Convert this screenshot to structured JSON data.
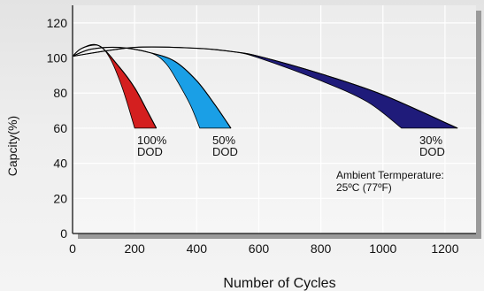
{
  "chart_data": {
    "type": "area",
    "title": "",
    "xlabel": "Number of Cycles",
    "ylabel": "Capcity(%)",
    "xlim": [
      0,
      1300
    ],
    "ylim": [
      0,
      130
    ],
    "x_ticks": [
      {
        "value": 0,
        "label": "0"
      },
      {
        "value": 200,
        "label": "200"
      },
      {
        "value": 400,
        "label": "400"
      },
      {
        "value": 600,
        "label": "600"
      },
      {
        "value": 800,
        "label": "800"
      },
      {
        "value": 1000,
        "label": "1000"
      },
      {
        "value": 1200,
        "label": "1200"
      }
    ],
    "y_ticks": [
      {
        "value": 0,
        "label": "0"
      },
      {
        "value": 20,
        "label": "20"
      },
      {
        "value": 40,
        "label": "40"
      },
      {
        "value": 60,
        "label": "60"
      },
      {
        "value": 80,
        "label": "80"
      },
      {
        "value": 100,
        "label": "100"
      },
      {
        "value": 120,
        "label": "120"
      }
    ],
    "grid": true,
    "series": [
      {
        "name_lines": [
          "100%",
          "DOD"
        ],
        "color": "#d41f1f",
        "left_edge": [
          [
            0,
            101
          ],
          [
            30,
            105.5
          ],
          [
            85,
            107
          ],
          [
            120,
            100
          ],
          [
            150,
            88
          ],
          [
            175,
            75
          ],
          [
            200,
            60
          ]
        ],
        "right_edge": [
          [
            0,
            101
          ],
          [
            30,
            105.5
          ],
          [
            85,
            107
          ],
          [
            150,
            95
          ],
          [
            200,
            83
          ],
          [
            240,
            70
          ],
          [
            270,
            60
          ]
        ]
      },
      {
        "name_lines": [
          "50%",
          "DOD"
        ],
        "color": "#1a9fe6",
        "left_edge": [
          [
            0,
            101
          ],
          [
            60,
            105
          ],
          [
            150,
            106
          ],
          [
            250,
            103
          ],
          [
            300,
            97
          ],
          [
            340,
            86
          ],
          [
            380,
            73
          ],
          [
            410,
            60
          ]
        ],
        "right_edge": [
          [
            0,
            101
          ],
          [
            60,
            105
          ],
          [
            150,
            106
          ],
          [
            250,
            103
          ],
          [
            330,
            98
          ],
          [
            400,
            87
          ],
          [
            460,
            73
          ],
          [
            510,
            60
          ]
        ]
      },
      {
        "name_lines": [
          "30%",
          "DOD"
        ],
        "color": "#1f1b7a",
        "left_edge": [
          [
            0,
            101
          ],
          [
            200,
            106
          ],
          [
            400,
            105.5
          ],
          [
            520,
            103.5
          ],
          [
            600,
            100
          ],
          [
            800,
            87
          ],
          [
            950,
            75
          ],
          [
            1060,
            60
          ]
        ],
        "right_edge": [
          [
            0,
            101
          ],
          [
            200,
            106
          ],
          [
            400,
            105.5
          ],
          [
            520,
            103.5
          ],
          [
            600,
            101
          ],
          [
            800,
            91
          ],
          [
            1000,
            79
          ],
          [
            1240,
            60
          ]
        ]
      }
    ],
    "annotation_lines": [
      "Ambient Termperature:",
      "25ºC (77ºF)"
    ]
  },
  "colors": {
    "grid": "#ffffff",
    "axis": "#333333",
    "outline": "#000000",
    "shadow": "#9a9a9a"
  }
}
